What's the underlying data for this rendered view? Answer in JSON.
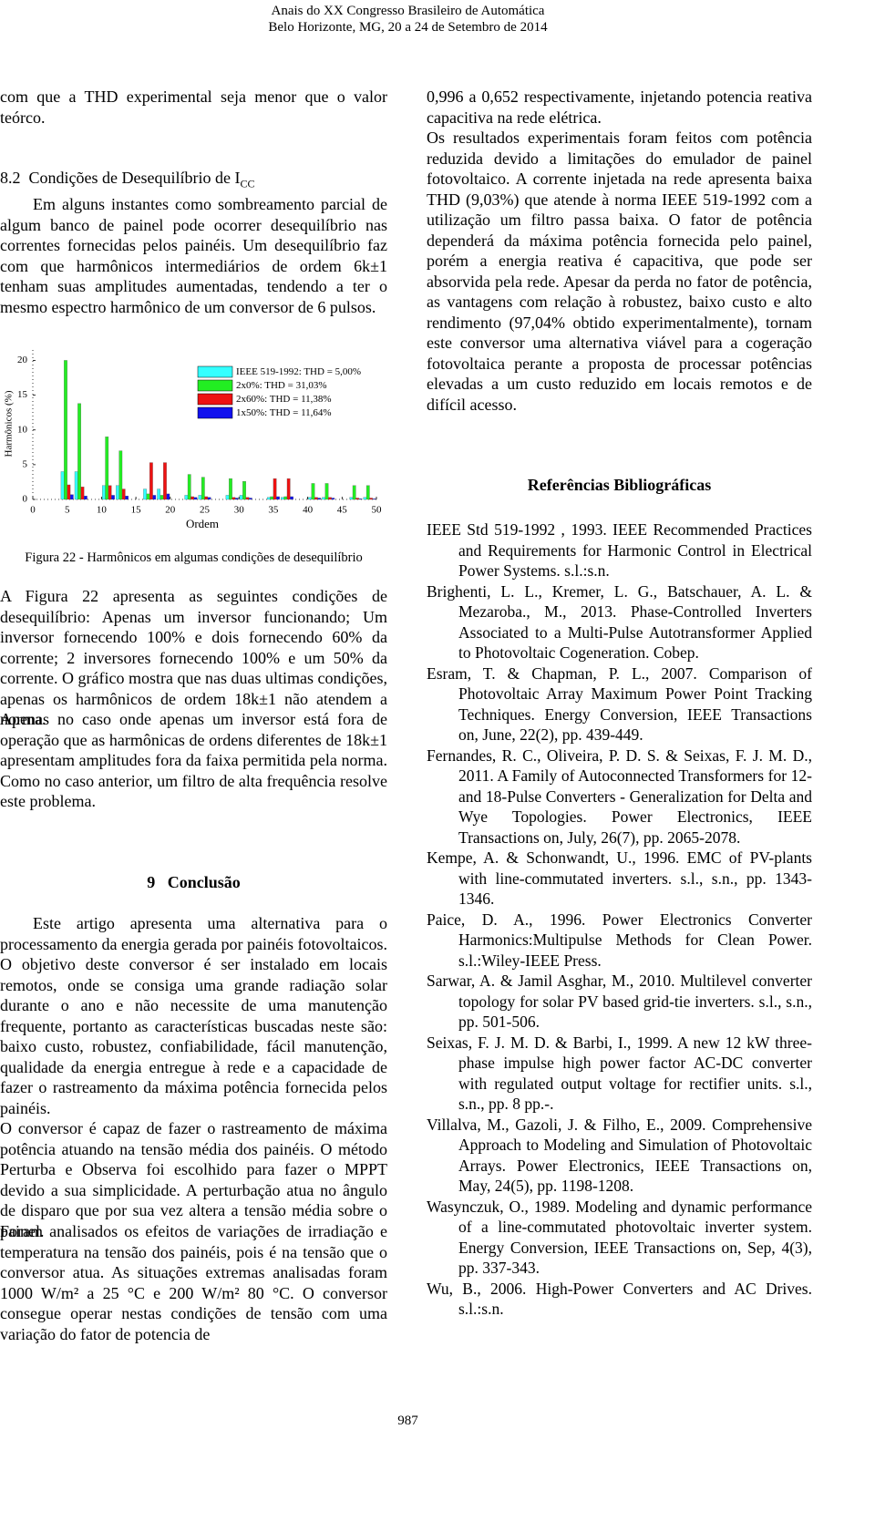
{
  "header": {
    "lines": [
      "Anais do XX Congresso Brasileiro de Automática",
      "Belo Horizonte, MG, 20 a 24 de Setembro de 2014"
    ]
  },
  "left": {
    "p0": "com que a THD experimental seja menor que o valor teórco.",
    "heading1": {
      "number": "8.2",
      "text": "Condições de Desequilíbrio de I",
      "sub": "CC"
    },
    "p1": "Em alguns instantes como sombreamento parcial de algum banco de painel pode ocorrer desequilíbrio nas correntes fornecidas pelos painéis. Um desequilíbrio faz com que harmônicos intermediários de ordem 6k±1 tenham suas amplitudes aumentadas, tendendo a ter o mesmo espectro harmônico de um conversor de 6 pulsos.",
    "caption": "Figura 22 - Harmônicos em algumas condições de desequilíbrio",
    "p2": "A Figura 22 apresenta as seguintes condições de desequilíbrio: Apenas um inversor funcionando; Um inversor fornecendo 100% e dois fornecendo 60% da corrente; 2 inversores fornecendo 100% e um 50% da corrente. O gráfico mostra que nas duas ultimas condições, apenas os harmônicos de ordem 18k±1 não atendem a norma.",
    "p3": "Apenas no caso onde apenas um inversor está fora de operação que as harmônicas de ordens diferentes de 18k±1 apresentam amplitudes fora da faixa permitida pela norma. Como no caso anterior, um filtro de alta frequência resolve este problema.",
    "heading2": {
      "number": "9",
      "text": "Conclusão"
    },
    "p4": "Este artigo apresenta uma alternativa para o processamento da energia gerada por painéis fotovoltaicos. O objetivo deste conversor é ser instalado em locais remotos, onde se consiga uma grande radiação solar durante o ano e não necessite de uma manutenção frequente, portanto as características buscadas neste são: baixo custo, robustez, confiabilidade, fácil manutenção, qualidade da energia entregue à rede e a capacidade de fazer o rastreamento da máxima potência fornecida pelos painéis.",
    "p5": "O conversor é capaz de fazer o rastreamento de máxima potência atuando na tensão média dos painéis. O método Perturba e Observa foi escolhido para fazer o MPPT devido a sua simplicidade. A perturbação atua no ângulo de disparo que por sua vez altera a tensão média sobre o painel.",
    "p6": "Foram analisados os efeitos de variações de irradiação e temperatura na tensão dos painéis, pois é na tensão que o conversor atua. As situações extremas analisadas foram 1000 W/m² a 25 °C e 200 W/m² 80 °C. O conversor consegue operar nestas condições de tensão com uma variação do fator de potencia de"
  },
  "right": {
    "p0": "0,996 a 0,652 respectivamente, injetando potencia reativa capacitiva na rede elétrica.",
    "p1": "Os resultados experimentais foram feitos com potência reduzida devido a limitações do emulador de painel fotovoltaico. A corrente injetada na rede apresenta baixa THD (9,03%) que atende à norma IEEE 519-1992 com a utilização um filtro passa baixa. O fator de potência dependerá da máxima potência fornecida pelo painel, porém a energia reativa é capacitiva, que pode ser absorvida pela rede. Apesar da perda no fator de potência, as vantagens com relação à robustez, baixo custo e alto rendimento (97,04% obtido experimentalmente), tornam este conversor uma alternativa viável para a cogeração fotovoltaica perante a proposta de processar potências elevadas a um custo reduzido em locais remotos e de difícil acesso.",
    "refs_heading": "Referências Bibliográficas",
    "refs": [
      "IEEE Std 519-1992 , 1993. IEEE Recommended Practices and Requirements for Harmonic Control in Electrical Power Systems. s.l.:s.n.",
      "Brighenti, L. L., Kremer, L. G., Batschauer, A. L. & Mezaroba., M., 2013. Phase-Controlled Inverters Associated to a Multi-Pulse Autotransformer Applied to Photovoltaic Cogeneration. Cobep.",
      "Esram, T. & Chapman, P. L., 2007. Comparison of Photovoltaic Array Maximum Power Point Tracking Techniques. Energy Conversion, IEEE Transactions on, June, 22(2), pp. 439-449.",
      "Fernandes, R. C., Oliveira, P. D. S. & Seixas, F. J. M. D., 2011. A Family of Autoconnected Transformers for 12- and 18-Pulse Converters - Generalization for Delta and Wye Topologies. Power Electronics, IEEE Transactions on, July, 26(7), pp. 2065-2078.",
      "Kempe, A. & Schonwandt, U., 1996. EMC of PV-plants with line-commutated inverters. s.l., s.n., pp. 1343-1346.",
      "Paice, D. A., 1996. Power Electronics Converter Harmonics:Multipulse Methods for Clean Power. s.l.:Wiley-IEEE Press.",
      "Sarwar, A. & Jamil Asghar, M., 2010. Multilevel converter topology for solar PV based grid-tie inverters. s.l., s.n., pp. 501-506.",
      "Seixas, F. J. M. D. & Barbi, I., 1999. A new 12 kW three-phase impulse high power factor AC-DC converter with regulated output voltage for rectifier units. s.l., s.n., pp. 8 pp.-.",
      "Villalva, M., Gazoli, J. & Filho, E., 2009. Comprehensive Approach to Modeling and Simulation of Photovoltaic Arrays. Power Electronics, IEEE Transactions on, May, 24(5), pp. 1198-1208.",
      "Wasynczuk, O., 1989. Modeling and dynamic performance of a line-commutated photovoltaic inverter system. Energy Conversion, IEEE Transactions on, Sep, 4(3), pp. 337-343.",
      "Wu, B., 2006. High-Power Converters and AC Drives. s.l.:s.n."
    ]
  },
  "footer": {
    "page": "987"
  },
  "chart_data": {
    "type": "bar",
    "xlabel": "Ordem",
    "ylabel": "Harmônicos (%)",
    "x": [
      5,
      7,
      11,
      13,
      17,
      19,
      23,
      25,
      29,
      31,
      35,
      37,
      41,
      43,
      47,
      49
    ],
    "series": [
      {
        "name": "IEEE 519-1992: THD = 5,00%",
        "color": "#33ffff",
        "values": [
          4,
          4,
          2,
          2,
          1.5,
          1.5,
          0.6,
          0.6,
          0.6,
          0.6,
          0.3,
          0.3,
          0.3,
          0.3,
          0.3,
          0.3
        ]
      },
      {
        "name": "2x0%: THD = 31,03%",
        "color": "#22ee22",
        "values": [
          20,
          13.8,
          9,
          7,
          0.8,
          0.6,
          3.6,
          3.2,
          3,
          2.6,
          0.4,
          0.4,
          2.3,
          2.3,
          2,
          2
        ]
      },
      {
        "name": "2x60%: THD = 11,38%",
        "color": "#ee1111",
        "values": [
          2.1,
          1.8,
          2,
          1.5,
          5.3,
          5.3,
          0.4,
          0.4,
          0.3,
          0.3,
          3,
          3,
          0.3,
          0.3,
          0.2,
          0.2
        ]
      },
      {
        "name": "1x50%: THD = 11,64%",
        "color": "#1111ee",
        "values": [
          0.7,
          0.5,
          0.6,
          0.5,
          0.6,
          0.8,
          0.3,
          0.3,
          0.2,
          0.2,
          0.4,
          0.4,
          0.2,
          0.2,
          0.1,
          0.1
        ]
      }
    ],
    "xlim": [
      0,
      50
    ],
    "ylim": [
      0,
      21.5
    ],
    "xticks": [
      0,
      5,
      10,
      15,
      20,
      25,
      30,
      35,
      40,
      45,
      50
    ],
    "yticks": [
      0,
      5,
      10,
      15,
      20
    ],
    "legend": "upper right"
  }
}
